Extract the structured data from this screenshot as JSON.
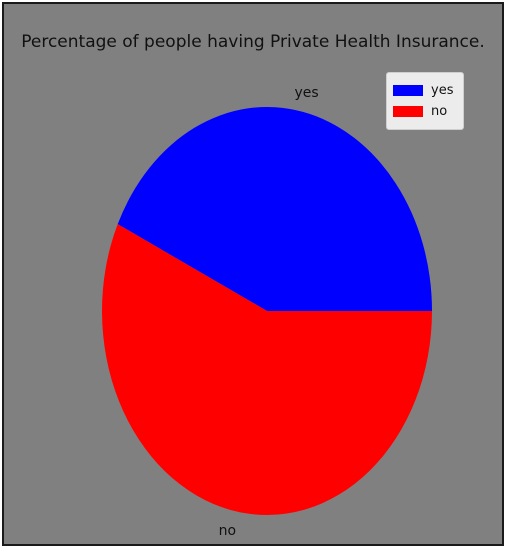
{
  "chart_data": {
    "type": "pie",
    "title": "Percentage of people having Private Health Insurance.",
    "categories": [
      "yes",
      "no"
    ],
    "values": [
      43,
      57
    ],
    "colors": [
      "#0000ff",
      "#ff0000"
    ],
    "start_angle_deg": 0,
    "direction": "counterclockwise",
    "legend_position": "top-right",
    "background": "#808080"
  }
}
